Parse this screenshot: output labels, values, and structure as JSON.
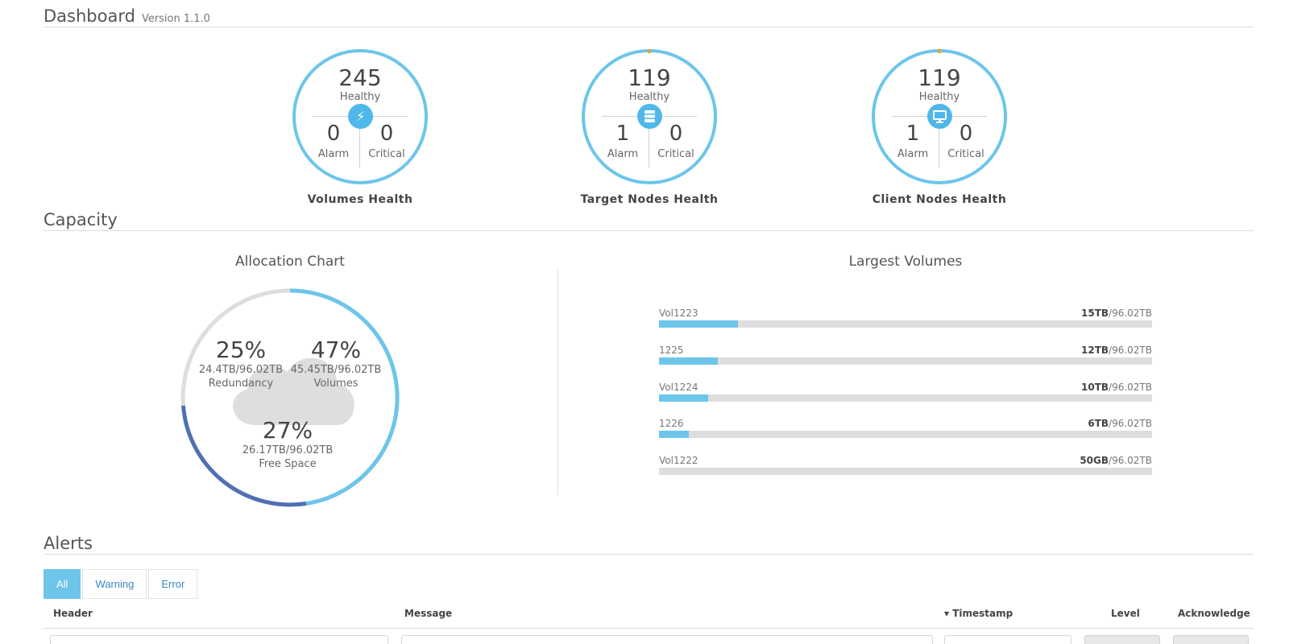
{
  "header": {
    "title": "Dashboard",
    "version": "Version 1.1.0"
  },
  "health": {
    "volumes": {
      "healthy": "245",
      "healthy_label": "Healthy",
      "alarm": "0",
      "alarm_label": "Alarm",
      "critical": "0",
      "critical_label": "Critical",
      "title": "Volumes Health",
      "icon": "lightning-icon"
    },
    "target_nodes": {
      "healthy": "119",
      "healthy_label": "Healthy",
      "alarm": "1",
      "alarm_label": "Alarm",
      "critical": "0",
      "critical_label": "Critical",
      "title": "Target Nodes Health",
      "icon": "server-icon"
    },
    "client_nodes": {
      "healthy": "119",
      "healthy_label": "Healthy",
      "alarm": "1",
      "alarm_label": "Alarm",
      "critical": "0",
      "critical_label": "Critical",
      "title": "Client Nodes Health",
      "icon": "monitor-icon"
    }
  },
  "capacity": {
    "title": "Capacity",
    "allocation": {
      "title": "Allocation Chart",
      "redundancy": {
        "pct": "25%",
        "ratio": "24.4TB/96.02TB",
        "name": "Redundancy"
      },
      "volumes": {
        "pct": "47%",
        "ratio": "45.45TB/96.02TB",
        "name": "Volumes"
      },
      "free": {
        "pct": "27%",
        "ratio": "26.17TB/96.02TB",
        "name": "Free Space"
      }
    },
    "largest_volumes": {
      "title": "Largest Volumes",
      "total": "/96.02TB",
      "items": [
        {
          "name": "Vol1223",
          "size": "15TB",
          "fraction": 0.16
        },
        {
          "name": "1225",
          "size": "12TB",
          "fraction": 0.12
        },
        {
          "name": "Vol1224",
          "size": "10TB",
          "fraction": 0.1
        },
        {
          "name": "1226",
          "size": "6TB",
          "fraction": 0.06
        },
        {
          "name": "Vol1222",
          "size": "50GB",
          "fraction": 0.0
        }
      ]
    }
  },
  "alerts": {
    "title": "Alerts",
    "filters": [
      "All",
      "Warning",
      "Error"
    ],
    "columns": {
      "header": "Header",
      "message": "Message",
      "timestamp": "Timestamp",
      "level": "Level",
      "acknowledge": "Acknowledge"
    },
    "sort_indicator": "▾"
  },
  "colors": {
    "ring": "#6dc5ea",
    "ring_mark": "#e8a33a",
    "icon_bg": "#4fb8e8",
    "volumes_arc": "#6dc5ea",
    "free_arc": "#5070b4",
    "redundancy_arc": "#dddddd",
    "bar_fill": "#6dc5ea",
    "bar_track": "#dddddd"
  }
}
